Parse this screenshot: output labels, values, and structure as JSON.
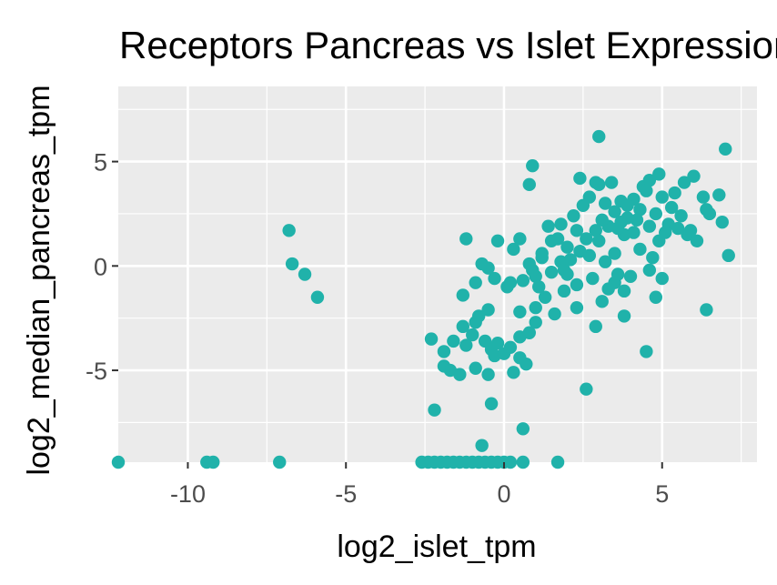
{
  "chart_data": {
    "type": "scatter",
    "title": "Receptors Pancreas vs Islet Expression",
    "xlabel": "log2_islet_tpm",
    "ylabel": "log2_median_pancreas_tpm",
    "xlim": [
      -12.2,
      8.0
    ],
    "ylim": [
      -9.4,
      8.6
    ],
    "xticks": [
      -10,
      -5,
      0,
      5
    ],
    "yticks": [
      -5,
      0,
      5
    ],
    "grid": true,
    "legend": "none",
    "point_color": "#20B2AA",
    "panel_color": "#EBEBEB",
    "points": [
      [
        -12.2,
        -9.4
      ],
      [
        -9.4,
        -9.4
      ],
      [
        -9.2,
        -9.4
      ],
      [
        -7.1,
        -9.4
      ],
      [
        -6.8,
        1.7
      ],
      [
        -6.7,
        0.1
      ],
      [
        -6.3,
        -0.4
      ],
      [
        -5.9,
        -1.5
      ],
      [
        -2.6,
        -9.4
      ],
      [
        -2.4,
        -9.4
      ],
      [
        -2.2,
        -9.4
      ],
      [
        -2.0,
        -9.4
      ],
      [
        -1.8,
        -9.4
      ],
      [
        -1.6,
        -9.4
      ],
      [
        -1.4,
        -9.4
      ],
      [
        -1.2,
        -9.4
      ],
      [
        -1.0,
        -9.4
      ],
      [
        -0.8,
        -9.4
      ],
      [
        -0.6,
        -9.4
      ],
      [
        -0.4,
        -9.4
      ],
      [
        -0.2,
        -9.4
      ],
      [
        0.0,
        -9.4
      ],
      [
        0.2,
        -9.4
      ],
      [
        0.6,
        -9.4
      ],
      [
        1.7,
        -9.4
      ],
      [
        -0.7,
        -8.6
      ],
      [
        0.6,
        -7.8
      ],
      [
        -2.2,
        -6.9
      ],
      [
        -0.4,
        -6.6
      ],
      [
        2.6,
        -5.9
      ],
      [
        -1.9,
        -4.8
      ],
      [
        -1.7,
        -5.0
      ],
      [
        -1.4,
        -5.2
      ],
      [
        -0.9,
        -4.9
      ],
      [
        -0.5,
        -5.2
      ],
      [
        0.3,
        -5.1
      ],
      [
        0.7,
        -4.7
      ],
      [
        0.5,
        -4.4
      ],
      [
        -2.3,
        -3.5
      ],
      [
        -1.9,
        -4.1
      ],
      [
        -1.6,
        -3.6
      ],
      [
        -1.2,
        -3.8
      ],
      [
        -1.0,
        -3.3
      ],
      [
        -0.6,
        -3.6
      ],
      [
        -0.4,
        -4.0
      ],
      [
        -0.2,
        -3.7
      ],
      [
        0.0,
        -4.2
      ],
      [
        0.2,
        -3.9
      ],
      [
        0.5,
        -3.4
      ],
      [
        0.8,
        -3.2
      ],
      [
        1.0,
        -2.7
      ],
      [
        -0.3,
        -4.3
      ],
      [
        -1.3,
        -2.9
      ],
      [
        -0.8,
        -2.4
      ],
      [
        -0.5,
        -2.1
      ],
      [
        0.5,
        -2.2
      ],
      [
        1.3,
        -1.5
      ],
      [
        1.6,
        -2.3
      ],
      [
        1.9,
        -1.2
      ],
      [
        2.3,
        -0.9
      ],
      [
        3.1,
        -1.7
      ],
      [
        2.9,
        -2.9
      ],
      [
        3.8,
        -2.4
      ],
      [
        -1.3,
        -1.4
      ],
      [
        -0.9,
        -0.8
      ],
      [
        -0.3,
        -0.6
      ],
      [
        0.1,
        -1.0
      ],
      [
        0.6,
        -0.7
      ],
      [
        1.0,
        -0.5
      ],
      [
        1.5,
        -0.3
      ],
      [
        2.0,
        -0.4
      ],
      [
        2.8,
        -0.6
      ],
      [
        3.5,
        -0.8
      ],
      [
        3.8,
        -1.2
      ],
      [
        4.0,
        -0.5
      ],
      [
        4.6,
        -0.2
      ],
      [
        5.0,
        -0.6
      ],
      [
        4.8,
        -1.5
      ],
      [
        -1.2,
        1.3
      ],
      [
        -0.5,
        -0.1
      ],
      [
        -0.2,
        1.2
      ],
      [
        0.3,
        0.8
      ],
      [
        0.5,
        1.3
      ],
      [
        0.8,
        0.1
      ],
      [
        1.2,
        0.6
      ],
      [
        1.5,
        1.2
      ],
      [
        1.8,
        0.2
      ],
      [
        2.0,
        0.9
      ],
      [
        2.3,
        1.7
      ],
      [
        2.7,
        0.5
      ],
      [
        3.0,
        1.2
      ],
      [
        3.3,
        1.9
      ],
      [
        3.5,
        0.6
      ],
      [
        3.8,
        1.5
      ],
      [
        4.1,
        1.6
      ],
      [
        4.3,
        0.8
      ],
      [
        4.6,
        1.9
      ],
      [
        4.9,
        1.2
      ],
      [
        5.2,
        2.0
      ],
      [
        5.5,
        1.8
      ],
      [
        5.8,
        1.5
      ],
      [
        6.1,
        1.2
      ],
      [
        6.5,
        2.5
      ],
      [
        6.9,
        2.1
      ],
      [
        7.1,
        0.5
      ],
      [
        -0.7,
        0.1
      ],
      [
        0.9,
        -0.2
      ],
      [
        3.2,
        0.2
      ],
      [
        1.4,
        1.9
      ],
      [
        1.8,
        2.0
      ],
      [
        2.2,
        2.4
      ],
      [
        2.5,
        2.9
      ],
      [
        2.7,
        3.3
      ],
      [
        3.0,
        3.9
      ],
      [
        3.2,
        3.0
      ],
      [
        3.5,
        2.6
      ],
      [
        3.7,
        3.1
      ],
      [
        3.9,
        2.3
      ],
      [
        4.1,
        3.2
      ],
      [
        4.3,
        2.7
      ],
      [
        4.4,
        3.8
      ],
      [
        4.6,
        4.1
      ],
      [
        4.8,
        2.5
      ],
      [
        5.0,
        3.3
      ],
      [
        5.3,
        2.8
      ],
      [
        5.6,
        2.4
      ],
      [
        6.0,
        4.3
      ],
      [
        6.3,
        3.3
      ],
      [
        6.4,
        2.7
      ],
      [
        6.8,
        3.4
      ],
      [
        2.4,
        4.2
      ],
      [
        2.9,
        4.0
      ],
      [
        0.9,
        4.8
      ],
      [
        0.8,
        3.9
      ],
      [
        3.4,
        4.0
      ],
      [
        4.9,
        4.4
      ],
      [
        5.7,
        4.0
      ],
      [
        7.0,
        5.6
      ],
      [
        3.0,
        6.2
      ],
      [
        5.4,
        3.5
      ],
      [
        2.6,
        1.3
      ],
      [
        1.2,
        0.4
      ],
      [
        1.9,
        -0.2
      ],
      [
        2.4,
        0.7
      ],
      [
        3.6,
        1.8
      ],
      [
        4.2,
        2.2
      ],
      [
        5.1,
        1.6
      ],
      [
        3.1,
        2.2
      ],
      [
        3.9,
        2.9
      ],
      [
        4.5,
        3.6
      ],
      [
        3.3,
        -1.1
      ],
      [
        2.1,
        0.3
      ],
      [
        1.7,
        1.3
      ],
      [
        4.7,
        0.4
      ],
      [
        5.9,
        1.7
      ],
      [
        2.3,
        -2.0
      ],
      [
        0.2,
        -0.8
      ],
      [
        1.1,
        -1.0
      ],
      [
        3.6,
        -0.4
      ],
      [
        -0.9,
        -2.7
      ],
      [
        1.0,
        -2.0
      ],
      [
        4.5,
        -4.1
      ],
      [
        6.4,
        -2.1
      ],
      [
        3.7,
        2.1
      ],
      [
        2.9,
        1.7
      ]
    ]
  }
}
